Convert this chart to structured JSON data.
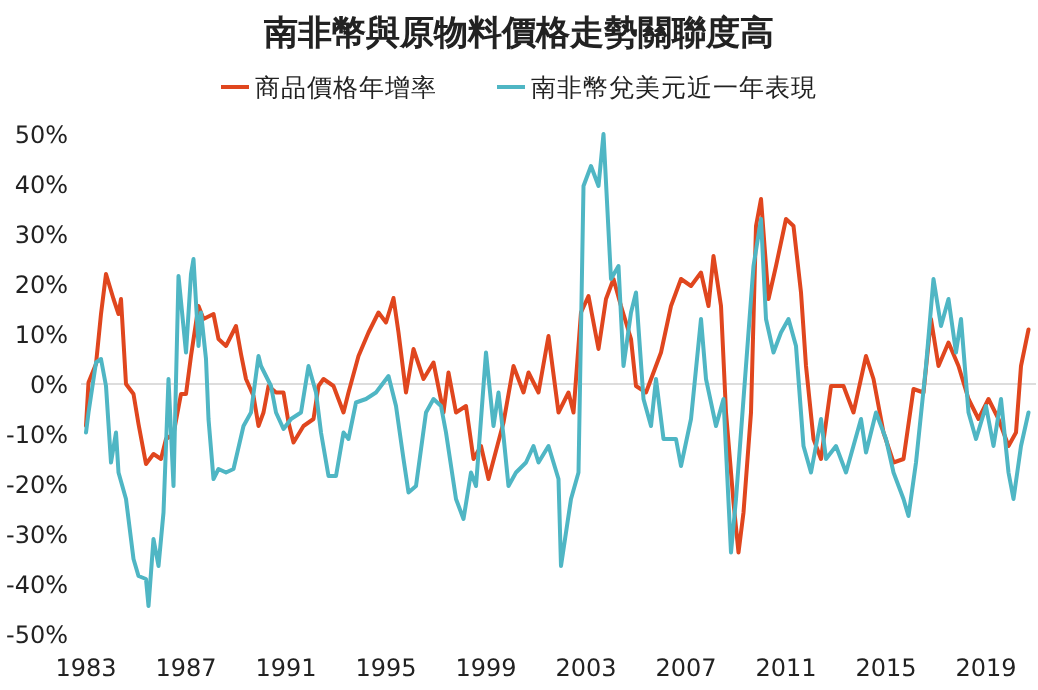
{
  "chart_data": {
    "type": "line",
    "title": "南非幣與原物料價格走勢關聯度高",
    "legend": "top",
    "xlim": [
      1982.8,
      2021
    ],
    "xticks": [
      1983,
      1987,
      1991,
      1995,
      1999,
      2003,
      2007,
      2011,
      2015,
      2019
    ],
    "ylim": [
      -50,
      50
    ],
    "yticks": [
      {
        "value": 50,
        "label": "50%"
      },
      {
        "value": 40,
        "label": "40%"
      },
      {
        "value": 30,
        "label": "30%"
      },
      {
        "value": 20,
        "label": "20%"
      },
      {
        "value": 10,
        "label": "10%"
      },
      {
        "value": 0,
        "label": "0%"
      },
      {
        "value": -10,
        "label": "-10%"
      },
      {
        "value": -20,
        "label": "-20%"
      },
      {
        "value": -30,
        "label": "-30%"
      },
      {
        "value": -40,
        "label": "-40%"
      },
      {
        "value": -50,
        "label": "-50%"
      }
    ],
    "ref_lines": [
      {
        "axis": "y",
        "value": 0,
        "color": "#dddddd"
      }
    ],
    "series": [
      {
        "name": "商品價格年增率",
        "color": "#e0461e",
        "x": [
          1983.0,
          1983.1,
          1983.4,
          1983.6,
          1983.8,
          1984.1,
          1984.3,
          1984.4,
          1984.6,
          1984.9,
          1985.1,
          1985.4,
          1985.7,
          1986.0,
          1986.2,
          1986.5,
          1986.8,
          1987.0,
          1987.2,
          1987.5,
          1987.7,
          1988.1,
          1988.3,
          1988.6,
          1989.0,
          1989.2,
          1989.4,
          1989.7,
          1989.9,
          1990.1,
          1990.3,
          1990.6,
          1990.9,
          1991.1,
          1991.3,
          1991.7,
          1992.1,
          1992.3,
          1992.5,
          1992.9,
          1993.3,
          1993.5,
          1993.9,
          1994.3,
          1994.7,
          1995.0,
          1995.3,
          1995.5,
          1995.8,
          1996.1,
          1996.5,
          1996.9,
          1997.3,
          1997.5,
          1997.8,
          1998.2,
          1998.5,
          1998.8,
          1999.1,
          1999.7,
          2000.1,
          2000.5,
          2000.7,
          2001.1,
          2001.5,
          2001.9,
          2002.3,
          2002.5,
          2002.8,
          2003.1,
          2003.5,
          2003.8,
          2004.1,
          2004.4,
          2004.8,
          2005.0,
          2005.4,
          2006.0,
          2006.4,
          2006.8,
          2007.2,
          2007.6,
          2007.9,
          2008.1,
          2008.4,
          2008.6,
          2008.9,
          2009.1,
          2009.3,
          2009.6,
          2009.8,
          2010.0,
          2010.3,
          2010.6,
          2011.0,
          2011.3,
          2011.6,
          2011.8,
          2012.1,
          2012.4,
          2012.8,
          2013.3,
          2013.7,
          2014.2,
          2014.5,
          2014.9,
          2015.3,
          2015.7,
          2016.1,
          2016.5,
          2016.8,
          2017.1,
          2017.5,
          2017.9,
          2018.3,
          2018.7,
          2019.1,
          2019.5,
          2019.9,
          2020.2,
          2020.4,
          2020.7
        ],
        "values": [
          -8.4,
          0.3,
          4,
          14,
          22,
          17,
          14,
          17,
          0,
          -2,
          -8,
          -16,
          -14,
          -15,
          -11,
          -10,
          -2,
          -2,
          5.6,
          15.6,
          13,
          14,
          9,
          7.6,
          11.6,
          6,
          1,
          -2.4,
          -8.4,
          -5.7,
          -0.4,
          -1.7,
          -1.7,
          -7.7,
          -11.7,
          -8.4,
          -7,
          -0.4,
          1,
          -0.4,
          -5.7,
          -1.7,
          5.6,
          10.3,
          14.3,
          12.3,
          17.2,
          10.3,
          -1.7,
          7,
          1,
          4.3,
          -5.7,
          2.3,
          -5.7,
          -4.4,
          -15,
          -12.4,
          -19,
          -7.7,
          3.6,
          -1.7,
          2.3,
          -1.7,
          9.6,
          -5.7,
          -1.7,
          -5.7,
          14.3,
          17.6,
          7,
          17,
          21,
          15.6,
          9,
          -0.4,
          -1.7,
          6.3,
          15.6,
          21,
          19.6,
          22.3,
          15.6,
          25.6,
          15.6,
          -5.7,
          -23.7,
          -33.7,
          -25.7,
          -5.7,
          31.6,
          37,
          17,
          23.6,
          33,
          31.6,
          18.3,
          3.6,
          -11,
          -15,
          -0.4,
          -0.4,
          -5.7,
          5.6,
          1,
          -9.7,
          -15.7,
          -15,
          -1,
          -1.7,
          13,
          3.6,
          8.3,
          3.6,
          -3,
          -7,
          -3,
          -7,
          -12.4,
          -9.7,
          3.6,
          10.9
        ]
      },
      {
        "name": "南非幣兌美元近一年表現",
        "color": "#4fb6c4",
        "x": [
          1983.0,
          1983.1,
          1983.4,
          1983.6,
          1983.8,
          1984.0,
          1984.2,
          1984.3,
          1984.6,
          1984.9,
          1985.1,
          1985.4,
          1985.5,
          1985.7,
          1985.9,
          1986.1,
          1986.3,
          1986.5,
          1986.7,
          1987.0,
          1987.2,
          1987.3,
          1987.5,
          1987.6,
          1987.8,
          1987.9,
          1988.1,
          1988.3,
          1988.6,
          1988.9,
          1989.3,
          1989.6,
          1989.9,
          1990.0,
          1990.4,
          1990.6,
          1990.9,
          1991.2,
          1991.6,
          1991.9,
          1992.2,
          1992.4,
          1992.7,
          1993.0,
          1993.3,
          1993.5,
          1993.8,
          1994.2,
          1994.6,
          1995.1,
          1995.4,
          1995.7,
          1995.9,
          1996.2,
          1996.6,
          1996.9,
          1997.2,
          1997.4,
          1997.8,
          1998.1,
          1998.4,
          1998.6,
          1999.0,
          1999.3,
          1999.5,
          1999.7,
          1999.9,
          2000.2,
          2000.6,
          2000.9,
          2001.1,
          2001.5,
          2001.9,
          2002.0,
          2002.4,
          2002.7,
          2002.9,
          2003.2,
          2003.5,
          2003.7,
          2004.0,
          2004.3,
          2004.5,
          2004.8,
          2005.0,
          2005.3,
          2005.6,
          2005.8,
          2006.1,
          2006.6,
          2006.8,
          2007.2,
          2007.6,
          2007.8,
          2008.2,
          2008.5,
          2008.8,
          2009.0,
          2009.3,
          2009.7,
          2010.0,
          2010.2,
          2010.5,
          2010.8,
          2011.1,
          2011.4,
          2011.7,
          2012.0,
          2012.4,
          2012.6,
          2013.0,
          2013.4,
          2014.0,
          2014.2,
          2014.6,
          2015.0,
          2015.3,
          2015.7,
          2015.9,
          2016.2,
          2016.6,
          2016.9,
          2017.2,
          2017.5,
          2017.8,
          2018.0,
          2018.3,
          2018.6,
          2019.0,
          2019.3,
          2019.6,
          2019.9,
          2020.1,
          2020.4,
          2020.7
        ],
        "values": [
          -9.7,
          -5.7,
          4.3,
          5,
          -0.4,
          -15.7,
          -9.7,
          -17.7,
          -23,
          -35,
          -38.4,
          -39,
          -44.4,
          -31,
          -36.4,
          -25.7,
          1,
          -20.4,
          21.6,
          6.3,
          22,
          25,
          7.6,
          14.3,
          5,
          -7,
          -19,
          -17,
          -17.7,
          -17,
          -8.4,
          -5.7,
          5.6,
          3.6,
          -0.4,
          -5.7,
          -9,
          -7,
          -5.7,
          3.6,
          -1.7,
          -9.7,
          -18.4,
          -18.4,
          -9.7,
          -11,
          -3.7,
          -3,
          -1.7,
          1.6,
          -4.4,
          -15,
          -21.7,
          -20.4,
          -5.7,
          -3,
          -4.4,
          -9.7,
          -23,
          -27,
          -17.7,
          -20.4,
          6.3,
          -8.4,
          -1.7,
          -10.4,
          -20.4,
          -17.7,
          -15.7,
          -12.4,
          -15.7,
          -12.4,
          -19,
          -36.4,
          -23,
          -17.7,
          39.6,
          43.6,
          39.6,
          50,
          21,
          23.6,
          3.6,
          14.3,
          18.3,
          -3,
          -8.4,
          1,
          -11,
          -11,
          -16.4,
          -7,
          13,
          1,
          -8.4,
          -3,
          -33.7,
          -23,
          -3,
          23.6,
          33,
          13,
          6.3,
          10.3,
          13,
          7.6,
          -12.4,
          -17.7,
          -7,
          -15,
          -12.4,
          -17.7,
          -7,
          -13.7,
          -5.7,
          -11,
          -17.7,
          -23,
          -26.4,
          -15.7,
          3.6,
          21,
          11.6,
          17,
          6.3,
          13,
          -5.7,
          -11,
          -4.4,
          -12.4,
          -3,
          -17.7,
          -23,
          -12.4,
          -5.7
        ]
      }
    ]
  }
}
